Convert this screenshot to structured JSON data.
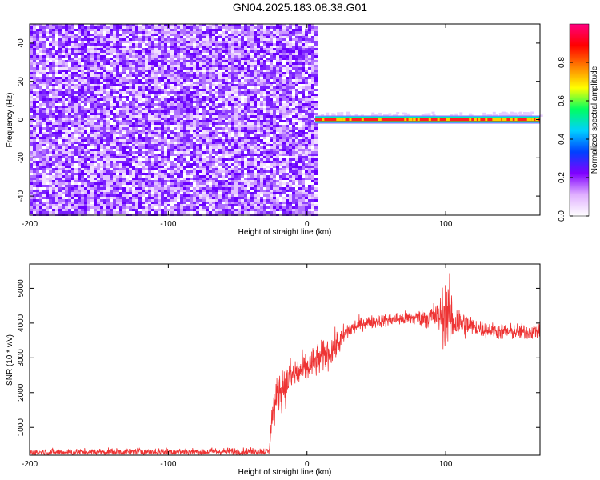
{
  "title": "GN04.2025.183.08.38.G01",
  "chart_data": [
    {
      "type": "heatmap",
      "title": "GN04.2025.183.08.38.G01",
      "xlabel": "Height of straight line (km)",
      "ylabel": "Frequency (Hz)",
      "xlim": [
        -200,
        168
      ],
      "ylim": [
        -50,
        50
      ],
      "xticks": [
        -200,
        -100,
        0,
        100
      ],
      "yticks": [
        -40,
        -20,
        0,
        20,
        40
      ],
      "noise_region_x": [
        -200,
        6
      ],
      "signal_region_x": [
        6,
        168
      ],
      "signal_track": {
        "frequency": 0,
        "start_x": 6,
        "end_x": 168,
        "note": ""
      },
      "colorbar": {
        "label": "Normalized spectral amplitude",
        "range": [
          0,
          1
        ],
        "ticks": [
          "0.0",
          "0.2",
          "0.4",
          "0.6",
          "0.8"
        ],
        "colors": [
          "#ffffff",
          "#e0b0ff",
          "#8000ff",
          "#0040ff",
          "#00d0ff",
          "#00ff60",
          "#ffff00",
          "#ff8000",
          "#ff0000",
          "#ff0080"
        ]
      },
      "grid": false
    },
    {
      "type": "line",
      "xlabel": "Height of straight line (km)",
      "ylabel": "SNR (10 * v/v)",
      "xlim": [
        -200,
        168
      ],
      "ylim": [
        200,
        5700
      ],
      "xticks": [
        -200,
        -100,
        0,
        100
      ],
      "yticks": [
        1000,
        2000,
        3000,
        4000,
        5000
      ],
      "series": [
        {
          "color": "#ee3333",
          "x": [
            -200,
            -160,
            -120,
            -80,
            -40,
            -27,
            -26,
            -20,
            -10,
            0,
            10,
            20,
            30,
            40,
            60,
            80,
            95,
            100,
            105,
            110,
            120,
            130,
            140,
            150,
            160,
            168
          ],
          "y": [
            280,
            290,
            300,
            300,
            310,
            310,
            1200,
            2100,
            2500,
            2700,
            3000,
            3300,
            3800,
            4000,
            4100,
            4150,
            4200,
            4300,
            4100,
            4000,
            3900,
            3800,
            3750,
            3750,
            3750,
            3800
          ],
          "spread": [
            110,
            110,
            120,
            120,
            120,
            120,
            500,
            700,
            600,
            500,
            500,
            450,
            300,
            200,
            200,
            250,
            500,
            1100,
            900,
            500,
            300,
            250,
            250,
            250,
            250,
            280
          ]
        }
      ],
      "grid": false
    }
  ]
}
